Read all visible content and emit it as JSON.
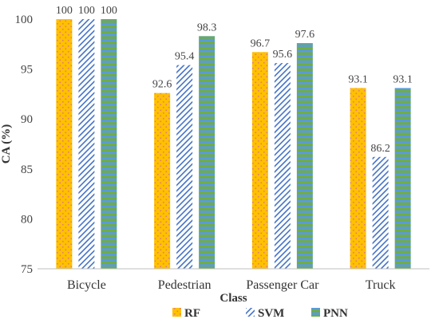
{
  "chart_data": {
    "type": "bar",
    "categories": [
      "Bicycle",
      "Pedestrian",
      "Passenger Car",
      "Truck"
    ],
    "series": [
      {
        "name": "RF",
        "values": [
          100,
          92.6,
          96.7,
          93.1
        ],
        "color": "#FFC000",
        "pattern": "dotted"
      },
      {
        "name": "SVM",
        "values": [
          100,
          95.4,
          95.6,
          86.2
        ],
        "color": "#4472C4",
        "pattern": "diagonal-stripes"
      },
      {
        "name": "PNN",
        "values": [
          100,
          98.3,
          97.6,
          93.1
        ],
        "color": "#70AD47",
        "pattern": "horizontal-stripes"
      }
    ],
    "data_labels": [
      [
        "100",
        "92.6",
        "96.7",
        "93.1"
      ],
      [
        "100",
        "95.4",
        "95.6",
        "86.2"
      ],
      [
        "100",
        "98.3",
        "97.6",
        "93.1"
      ]
    ],
    "ylim": [
      75,
      100
    ],
    "yticks": [
      "75",
      "80",
      "85",
      "90",
      "95",
      "100"
    ],
    "xlabel": "Class",
    "ylabel": "CA (%)",
    "legend_position": "bottom",
    "grid": false
  }
}
